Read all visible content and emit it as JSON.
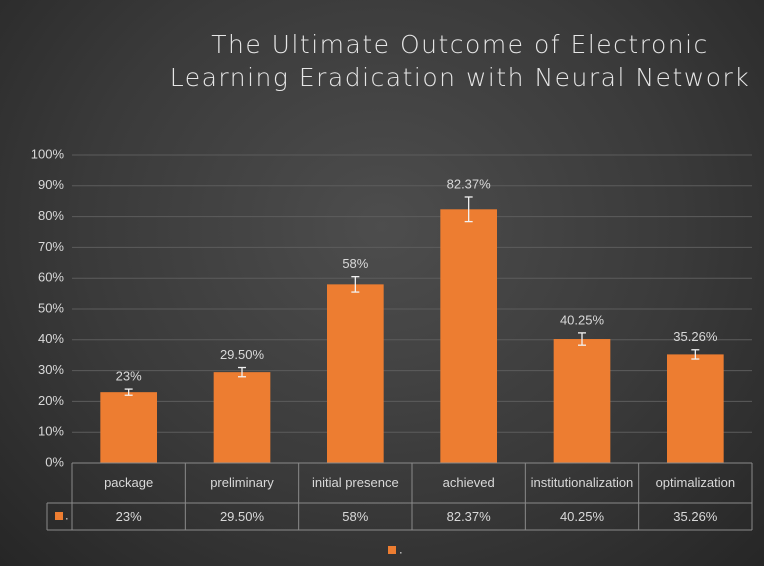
{
  "chart_data": {
    "type": "bar",
    "title": "The Ultimate Outcome of Electronic Learning Eradication with Neural Network",
    "categories": [
      "package",
      "preliminary",
      "initial presence",
      "achieved",
      "institutionalization",
      "optimalization"
    ],
    "series": [
      {
        "name": ".",
        "color": "#ED7D31",
        "values": [
          23,
          29.5,
          58,
          82.37,
          40.25,
          35.26
        ],
        "value_labels": [
          "23%",
          "29.50%",
          "58%",
          "82.37%",
          "40.25%",
          "35.26%"
        ],
        "errors": [
          1,
          1.5,
          2.5,
          4,
          2,
          1.5
        ]
      }
    ],
    "ylim": [
      0,
      100
    ],
    "yticks": [
      {
        "value": 0,
        "label": "0%"
      },
      {
        "value": 10,
        "label": "10%"
      },
      {
        "value": 20,
        "label": "20%"
      },
      {
        "value": 30,
        "label": "30%"
      },
      {
        "value": 40,
        "label": "40%"
      },
      {
        "value": 50,
        "label": "50%"
      },
      {
        "value": 60,
        "label": "60%"
      },
      {
        "value": 70,
        "label": "70%"
      },
      {
        "value": 80,
        "label": "80%"
      },
      {
        "value": 90,
        "label": "90%"
      },
      {
        "value": 100,
        "label": "100%"
      }
    ],
    "grid": true,
    "data_table": true,
    "legend": "bottom"
  }
}
